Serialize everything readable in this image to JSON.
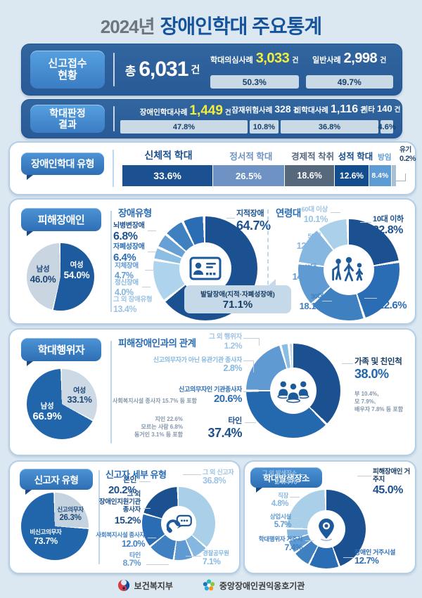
{
  "title": {
    "year": "2024년",
    "main": "장애인학대 주요통계"
  },
  "footer": {
    "org1": "보건복지부",
    "org2": "중앙장애인권익옹호기관"
  },
  "colors": {
    "accent_yellow": "#f2ee3e",
    "banner_blue": "#2e63a4",
    "navy": "#1b5191",
    "card_border": "#b3cfe8"
  },
  "sections": {
    "report": {
      "tag_lines": [
        "신고접수",
        "현황"
      ]
    },
    "judgment": {
      "tag_lines": [
        "학대판정",
        "결과"
      ]
    },
    "abuse_types": {
      "tag": "장애인학대 유형"
    },
    "victims": {
      "tag": "피해장애인",
      "disability_heading": "장애유형",
      "age_heading": "연령대"
    },
    "perpetrators": {
      "tag": "학대행위자",
      "relation_heading": "피해장애인과의 관계"
    },
    "reporters": {
      "tag": "신고자 유형",
      "detail_heading": "신고자 세부 유형"
    },
    "location": {
      "tag": "학대발생장소"
    }
  },
  "chart_data": [
    {
      "id": "report-status",
      "type": "bar",
      "title": "신고접수 현황",
      "total_label": "총",
      "total_value": "6,031",
      "total_unit": "건",
      "items": [
        {
          "label": "학대의심사례",
          "count": "3,033",
          "unit": "건",
          "value": 50.3,
          "percent": "50.3%",
          "count_color": "#f2ee3e"
        },
        {
          "label": "일반사례",
          "count": "2,998",
          "unit": "건",
          "value": 49.7,
          "percent": "49.7%",
          "count_color": "#ffffff"
        }
      ]
    },
    {
      "id": "judgment-result",
      "type": "bar",
      "title": "학대판정 결과",
      "items": [
        {
          "label": "장애인학대사례",
          "count": "1,449",
          "unit": "건",
          "value": 47.8,
          "percent": "47.8%",
          "count_color": "#f2ee3e"
        },
        {
          "label": "잠재위험사례",
          "count": "328",
          "unit": "건",
          "value": 10.8,
          "percent": "10.8%",
          "count_color": "#ffffff"
        },
        {
          "label": "비학대사례",
          "count": "1,116",
          "unit": "건",
          "value": 36.8,
          "percent": "36.8%",
          "count_color": "#ffffff"
        },
        {
          "label": "기타",
          "count": "140",
          "unit": "건",
          "value": 4.6,
          "percent": "4.6%",
          "count_color": "#ffffff"
        }
      ]
    },
    {
      "id": "abuse-types",
      "type": "bar",
      "title": "장애인학대 유형",
      "items": [
        {
          "label": "신체적 학대",
          "value": 33.6,
          "percent": "33.6%",
          "color": "#1b5191",
          "lc": "#1b5191"
        },
        {
          "label": "정서적 학대",
          "value": 26.5,
          "percent": "26.5%",
          "color": "#6d92c3",
          "lc": "#6d92c3"
        },
        {
          "label": "경제적 착취",
          "value": 18.6,
          "percent": "18.6%",
          "color": "#55687c",
          "lc": "#55687c"
        },
        {
          "label": "성적 학대",
          "value": 12.6,
          "percent": "12.6%",
          "color": "#134d8d",
          "lc": "#134d8d"
        },
        {
          "label": "방임",
          "value": 8.4,
          "percent": "8.4%",
          "color": "#5c9bd3",
          "lc": "#5c9bd3"
        },
        {
          "label": "유기",
          "value": 0.2,
          "percent": "0.2%",
          "color": "#a9c0d4",
          "lc": "#25496e"
        }
      ]
    },
    {
      "id": "victim-gender",
      "type": "pie",
      "title": "피해장애인 성별",
      "items": [
        {
          "label": "여성",
          "value": 54.0,
          "percent": "54.0%",
          "color": "#1d5a9e",
          "text_color": "#ffffff"
        },
        {
          "label": "남성",
          "value": 46.0,
          "percent": "46.0%",
          "color": "#c9d5e0",
          "text_color": "#1c4877"
        }
      ]
    },
    {
      "id": "victim-disability",
      "type": "donut",
      "title": "장애유형",
      "items": [
        {
          "label": "지적장애",
          "value": 64.7,
          "percent": "64.7%",
          "color": "#1b5191",
          "lc": "#1b5191"
        },
        {
          "label": "그 외 장애유형",
          "value": 13.4,
          "percent": "13.4%",
          "color": "#aed3ec",
          "lc": "#9cc3e4"
        },
        {
          "label": "정신장애",
          "value": 4.0,
          "percent": "4.0%",
          "color": "#8cbde2",
          "lc": "#86b7e0"
        },
        {
          "label": "지체장애",
          "value": 4.7,
          "percent": "4.7%",
          "color": "#66a0d4",
          "lc": "#5f9ad2"
        },
        {
          "label": "자폐성장애",
          "value": 6.4,
          "percent": "6.4%",
          "color": "#3f80c1",
          "lc": "#2a6db5"
        },
        {
          "label": "뇌병변장애",
          "value": 6.8,
          "percent": "6.8%",
          "color": "#2a6db5",
          "lc": "#1b5191"
        }
      ],
      "callout": {
        "label": "발달장애(지적·자폐성장애)",
        "percent": "71.1%"
      }
    },
    {
      "id": "victim-age",
      "type": "donut",
      "title": "연령대",
      "items": [
        {
          "label": "10대 이하",
          "value": 22.8,
          "percent": "22.8%",
          "color": "#1b5191",
          "lc": "#1b5191"
        },
        {
          "label": "20대",
          "value": 22.6,
          "percent": "22.6%",
          "color": "#2a6db5",
          "lc": "#2a6db5"
        },
        {
          "label": "30대",
          "value": 18.1,
          "percent": "18.1%",
          "color": "#3f80c1",
          "lc": "#3f80c1"
        },
        {
          "label": "40대",
          "value": 14.0,
          "percent": "14.0%",
          "color": "#5f9ad2",
          "lc": "#5f9ad2"
        },
        {
          "label": "50대",
          "value": 12.4,
          "percent": "12.4%",
          "color": "#86b7e0",
          "lc": "#86b7e0"
        },
        {
          "label": "60대 이상",
          "value": 10.1,
          "percent": "10.1%",
          "color": "#abd0ea",
          "lc": "#9cc3e4"
        }
      ]
    },
    {
      "id": "perpetrator-gender",
      "type": "pie",
      "title": "학대행위자 성별",
      "items": [
        {
          "label": "여성",
          "value": 33.1,
          "percent": "33.1%",
          "color": "#cdd9e4",
          "text_color": "#1c4877"
        },
        {
          "label": "남성",
          "value": 66.9,
          "percent": "66.9%",
          "color": "#2166ab",
          "text_color": "#ffffff"
        }
      ]
    },
    {
      "id": "relationship",
      "type": "donut",
      "title": "피해장애인과의 관계",
      "items": [
        {
          "label": "가족 및 친인척",
          "value": 38.0,
          "percent": "38.0%",
          "color": "#1b5191",
          "lc": "#2166ab"
        },
        {
          "label": "타인",
          "value": 37.4,
          "percent": "37.4%",
          "color": "#2468ad",
          "lc": "#1b5191"
        },
        {
          "label": "신고의무자인 기관종사자",
          "value": 20.6,
          "percent": "20.6%",
          "color": "#5f9ad2",
          "lc": "#2a6db5"
        },
        {
          "label": "신고의무자가 아닌 유관기관 종사자",
          "value": 2.8,
          "percent": "2.8%",
          "color": "#8cbde2",
          "lc": "#86b7e0"
        },
        {
          "label": "그 외 행위자",
          "value": 1.2,
          "percent": "1.2%",
          "color": "#bcd9ef",
          "lc": "#9cc3e4"
        }
      ],
      "family_notes": [
        "부 10.4%,",
        "모 7.9%,",
        "배우자 7.8% 등 포함"
      ],
      "inst_note": "사회복지시설 종사자 15.7% 등 포함",
      "other_notes": [
        "지인 22.6%",
        "모르는 사람 6.8%",
        "동거인 3.1% 등 포함"
      ]
    },
    {
      "id": "reporter-type",
      "type": "pie",
      "title": "신고자 유형",
      "items": [
        {
          "label": "신고의무자",
          "value": 26.3,
          "percent": "26.3%",
          "color": "#c5d3e0",
          "text_color": "#1c4877"
        },
        {
          "label": "비신고의무자",
          "value": 73.7,
          "percent": "73.7%",
          "color": "#2166ab",
          "text_color": "#ffffff"
        }
      ]
    },
    {
      "id": "reporter-detail",
      "type": "donut",
      "title": "신고자 세부 유형",
      "items": [
        {
          "label": "그 외 신고자",
          "value": 36.8,
          "percent": "36.8%",
          "color": "#a9cfe9",
          "lc": "#9cc3e4"
        },
        {
          "label": "경찰공무원",
          "value": 7.1,
          "percent": "7.1%",
          "color": "#86b7e0",
          "lc": "#86b7e0"
        },
        {
          "label": "타인",
          "value": 8.7,
          "percent": "8.7%",
          "color": "#5f9ad2",
          "lc": "#5f9ad2"
        },
        {
          "label": "사회복지시설 종사자",
          "value": 12.0,
          "percent": "12.0%",
          "color": "#3f80c1",
          "lc": "#3f80c1"
        },
        {
          "label": "그 외 장애인지원기관 종사자",
          "value": 15.2,
          "percent": "15.2%",
          "color": "#2a6db5",
          "lc": "#1d4f8c",
          "label_lines": [
            "그 외",
            "장애인지원기관",
            "종사자"
          ]
        },
        {
          "label": "본인",
          "value": 20.2,
          "percent": "20.2%",
          "color": "#1b5191",
          "lc": "#1b5191"
        }
      ]
    },
    {
      "id": "abuse-location",
      "type": "donut",
      "title": "학대발생장소",
      "items": [
        {
          "label": "피해장애인 거주지",
          "value": 45.0,
          "percent": "45.0%",
          "color": "#1b5191",
          "lc": "#1b5191"
        },
        {
          "label": "장애인 거주시설",
          "value": 12.7,
          "percent": "12.7%",
          "color": "#2a6db5",
          "lc": "#2a6db5"
        },
        {
          "label": "학대행위자 거주지",
          "value": 7.4,
          "percent": "7.4%",
          "color": "#3f80c1",
          "lc": "#3f80c1"
        },
        {
          "label": "상업시설",
          "value": 5.7,
          "percent": "5.7%",
          "color": "#5f9ad2",
          "lc": "#5f9ad2"
        },
        {
          "label": "직장",
          "value": 4.8,
          "percent": "4.8%",
          "color": "#86b7e0",
          "lc": "#86b7e0"
        },
        {
          "label": "그 외 발생장소",
          "value": 24.4,
          "percent": "24.4%",
          "color": "#a9cfe9",
          "lc": "#9cc3e4"
        }
      ]
    }
  ]
}
